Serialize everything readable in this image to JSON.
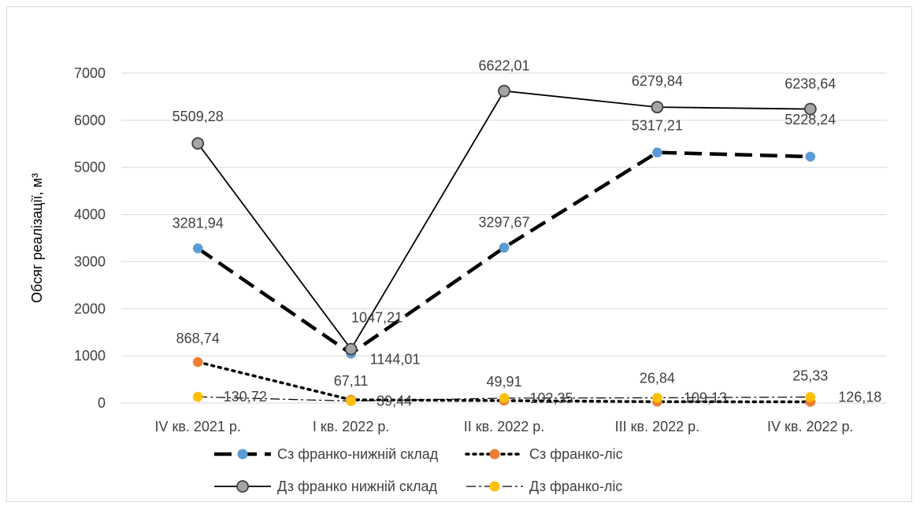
{
  "chart_data": {
    "type": "line",
    "ylabel": "Обсяг реалізації, м³",
    "ylim": [
      0,
      7000
    ],
    "yticks": [
      "0",
      "1000",
      "2000",
      "3000",
      "4000",
      "5000",
      "6000",
      "7000"
    ],
    "grid": true,
    "legend_position": "bottom",
    "categories": [
      "IV кв. 2021 р.",
      "I кв. 2022 р.",
      "II кв. 2022 р.",
      "III кв. 2022 р.",
      "IV кв. 2022 р."
    ],
    "series": [
      {
        "name": "Сз франко-нижній склад",
        "values": [
          3281.94,
          1047.21,
          3297.67,
          5317.21,
          5228.24
        ],
        "labels": [
          "3281,94",
          "1047,21",
          "3297,67",
          "5317,21",
          "5228,24"
        ],
        "line_color": "#000000",
        "marker_color": "#5b9bd5",
        "style": "dashed"
      },
      {
        "name": "Сз франко-ліс",
        "values": [
          868.74,
          67.11,
          49.91,
          26.84,
          25.33
        ],
        "labels": [
          "868,74",
          "67,11",
          "49,91",
          "26,84",
          "25,33"
        ],
        "line_color": "#000000",
        "marker_color": "#ed7d31",
        "style": "dotted"
      },
      {
        "name": "Дз франко нижній склад",
        "values": [
          5509.28,
          1144.01,
          6622.01,
          6279.84,
          6238.64
        ],
        "labels": [
          "5509,28",
          "1144,01",
          "6622,01",
          "6279,84",
          "6238,64"
        ],
        "line_color": "#000000",
        "marker_color": "#a5a5a5",
        "style": "solid"
      },
      {
        "name": "Дз франко-ліс",
        "values": [
          130.72,
          39.44,
          102.35,
          109.13,
          126.18
        ],
        "labels": [
          "130,72",
          "39,44",
          "102,35",
          "109,13",
          "126,18"
        ],
        "line_color": "#000000",
        "marker_color": "#ffc000",
        "style": "dashdot"
      }
    ]
  }
}
